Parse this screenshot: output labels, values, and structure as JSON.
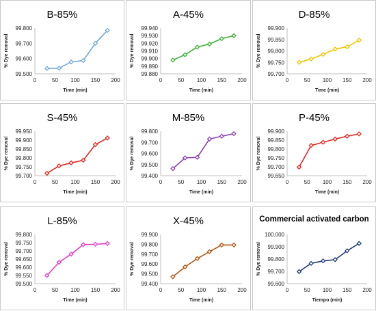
{
  "chart_data": [
    {
      "type": "line",
      "title": "B-85%",
      "xlabel": "Time (min)",
      "ylabel": "% Dye removal",
      "xlim": [
        0,
        200
      ],
      "ylim": [
        99.5,
        99.8
      ],
      "yticks": [
        "99.500",
        "99.600",
        "99.700",
        "99.800"
      ],
      "xticks": [
        "0",
        "50",
        "100",
        "150",
        "200"
      ],
      "color": "#6fa8dc",
      "series": [
        {
          "x": [
            30,
            60,
            90,
            120,
            150,
            180
          ],
          "values": [
            99.535,
            99.537,
            99.578,
            99.587,
            99.7,
            99.785
          ]
        }
      ]
    },
    {
      "type": "line",
      "title": "A-45%",
      "xlabel": "Time (min)",
      "ylabel": "% Dye removal",
      "xlim": [
        0,
        200
      ],
      "ylim": [
        99.88,
        99.94
      ],
      "yticks": [
        "99.880",
        "99.890",
        "99.900",
        "99.910",
        "99.920",
        "99.930",
        "99.940"
      ],
      "xticks": [
        "0",
        "50",
        "100",
        "150",
        "200"
      ],
      "color": "#3cb034",
      "series": [
        {
          "x": [
            30,
            60,
            90,
            120,
            150,
            180
          ],
          "values": [
            99.898,
            99.905,
            99.915,
            99.919,
            99.926,
            99.93
          ]
        }
      ]
    },
    {
      "type": "line",
      "title": "D-85%",
      "xlabel": "Time (min)",
      "ylabel": "% Dye removal",
      "xlim": [
        0,
        200
      ],
      "ylim": [
        99.7,
        99.9
      ],
      "yticks": [
        "99.700",
        "99.750",
        "99.800",
        "99.850",
        "99.900"
      ],
      "xticks": [
        "0",
        "50",
        "100",
        "150",
        "200"
      ],
      "color": "#f2c500",
      "series": [
        {
          "x": [
            30,
            60,
            90,
            120,
            150,
            180
          ],
          "values": [
            99.75,
            99.765,
            99.785,
            99.808,
            99.818,
            99.847
          ]
        }
      ]
    },
    {
      "type": "line",
      "title": "S-45%",
      "xlabel": "Time (min)",
      "ylabel": "% Dye removal",
      "xlim": [
        0,
        200
      ],
      "ylim": [
        99.7,
        99.95
      ],
      "yticks": [
        "99.700",
        "99.750",
        "99.800",
        "99.850",
        "99.900",
        "99.950"
      ],
      "xticks": [
        "0",
        "50",
        "100",
        "150",
        "200"
      ],
      "color": "#e8251f",
      "series": [
        {
          "x": [
            30,
            60,
            90,
            120,
            150,
            180
          ],
          "values": [
            99.713,
            99.755,
            99.772,
            99.787,
            99.875,
            99.912
          ]
        }
      ]
    },
    {
      "type": "line",
      "title": "M-85%",
      "xlabel": "Time (min)",
      "ylabel": "% Dye removal",
      "xlim": [
        0,
        200
      ],
      "ylim": [
        99.4,
        99.8
      ],
      "yticks": [
        "99.400",
        "99.500",
        "99.600",
        "99.700",
        "99.800"
      ],
      "xticks": [
        "0",
        "50",
        "100",
        "150",
        "200"
      ],
      "color": "#8a3fb5",
      "series": [
        {
          "x": [
            30,
            60,
            90,
            120,
            150,
            180
          ],
          "values": [
            99.463,
            99.56,
            99.565,
            99.73,
            99.755,
            99.778
          ]
        }
      ]
    },
    {
      "type": "line",
      "title": "P-45%",
      "xlabel": "Time (min)",
      "ylabel": "% Dye removal",
      "xlim": [
        0,
        200
      ],
      "ylim": [
        99.65,
        99.9
      ],
      "yticks": [
        "99.650",
        "99.700",
        "99.750",
        "99.800",
        "99.850",
        "99.900"
      ],
      "xticks": [
        "0",
        "50",
        "100",
        "150",
        "200"
      ],
      "color": "#e8251f",
      "series": [
        {
          "x": [
            30,
            60,
            90,
            120,
            150,
            180
          ],
          "values": [
            99.698,
            99.82,
            99.838,
            99.856,
            99.872,
            99.885
          ]
        }
      ]
    },
    {
      "type": "line",
      "title": "L-85%",
      "xlabel": "Time (min)",
      "ylabel": "% Dye removal",
      "xlim": [
        0,
        200
      ],
      "ylim": [
        99.5,
        99.8
      ],
      "yticks": [
        "99.500",
        "99.550",
        "99.600",
        "99.650",
        "99.700",
        "99.750",
        "99.800"
      ],
      "xticks": [
        "0",
        "50",
        "100",
        "150",
        "200"
      ],
      "color": "#e83ac6",
      "series": [
        {
          "x": [
            30,
            60,
            90,
            120,
            150,
            180
          ],
          "values": [
            99.55,
            99.63,
            99.68,
            99.738,
            99.74,
            99.745
          ]
        }
      ]
    },
    {
      "type": "line",
      "title": "X-45%",
      "xlabel": "Time (min)",
      "ylabel": "% Dye removal",
      "xlim": [
        0,
        200
      ],
      "ylim": [
        99.4,
        99.9
      ],
      "yticks": [
        "99.400",
        "99.500",
        "99.600",
        "99.700",
        "99.800",
        "99.900"
      ],
      "xticks": [
        "0",
        "50",
        "100",
        "150",
        "200"
      ],
      "color": "#b35410",
      "series": [
        {
          "x": [
            30,
            60,
            90,
            120,
            150,
            180
          ],
          "values": [
            99.47,
            99.57,
            99.655,
            99.725,
            99.793,
            99.793
          ]
        }
      ]
    },
    {
      "type": "line",
      "title": "Commercial activated carbon",
      "xlabel": "Tiempo (min)",
      "ylabel": "% Dye removal",
      "xlim": [
        0,
        200
      ],
      "ylim": [
        99.6,
        100.0
      ],
      "yticks": [
        "99.600",
        "99.700",
        "99.800",
        "99.900",
        "100.000"
      ],
      "xticks": [
        "0",
        "50",
        "100",
        "150",
        "200"
      ],
      "color": "#1f3a7a",
      "series": [
        {
          "x": [
            30,
            60,
            90,
            120,
            150,
            180
          ],
          "values": [
            99.698,
            99.765,
            99.785,
            99.795,
            99.867,
            99.927
          ]
        }
      ]
    }
  ]
}
